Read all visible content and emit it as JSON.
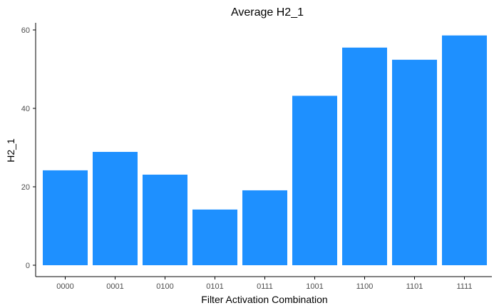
{
  "chart_data": {
    "type": "bar",
    "title": "Average H2_1",
    "xlabel": "Filter Activation Combination",
    "ylabel": "H2_1",
    "categories": [
      "0000",
      "0001",
      "0100",
      "0101",
      "0111",
      "1001",
      "1100",
      "1101",
      "1111"
    ],
    "values": [
      24.2,
      28.9,
      23.1,
      14.2,
      19.1,
      43.2,
      55.5,
      52.4,
      58.6
    ],
    "ylim": [
      0,
      60
    ],
    "yticks": [
      0,
      20,
      40,
      60
    ],
    "bar_color": "#1E90FF",
    "grid": false,
    "legend": "none"
  }
}
